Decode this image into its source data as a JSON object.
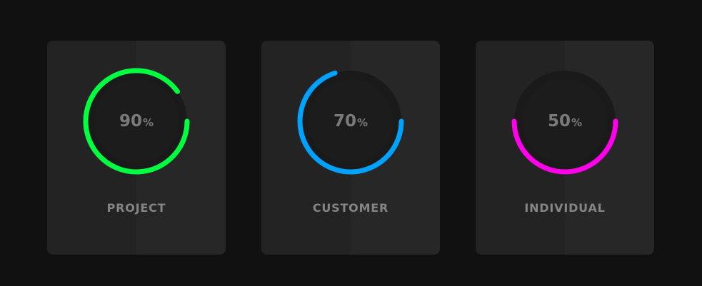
{
  "cards": [
    {
      "label": "PROJECT",
      "value": "90",
      "unit": "%",
      "progress": 0.9,
      "color": "#00ff40"
    },
    {
      "label": "CUSTOMER",
      "value": "70",
      "unit": "%",
      "progress": 0.7,
      "color": "#00a2ff"
    },
    {
      "label": "INDIVIDUAL",
      "value": "50",
      "unit": "%",
      "progress": 0.5,
      "color": "#ff00ea"
    }
  ],
  "colors": {
    "background": "#111111",
    "card": "#232323",
    "text": "#858585"
  }
}
